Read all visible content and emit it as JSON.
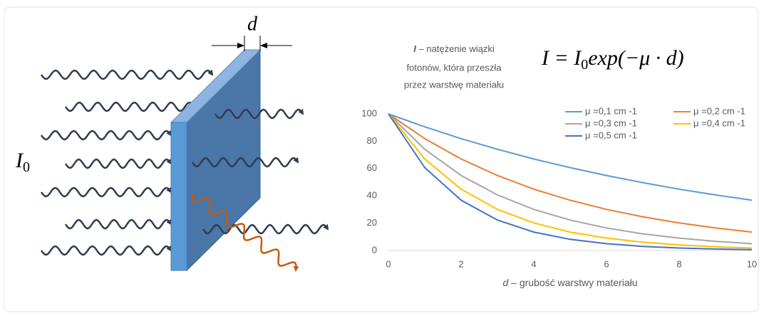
{
  "diagram": {
    "thickness_label": "d",
    "intensity_label": {
      "symbol": "I",
      "sub": "0"
    }
  },
  "chart_data": {
    "type": "line",
    "annotation": {
      "symbol": "I",
      "lines": [
        " – natężenie wiązki",
        "fotonów, która przeszła",
        "przez warstwę materiału"
      ]
    },
    "formula": {
      "lhs": "I = I",
      "sub": "0",
      "rhs": "exp(−μ · d)"
    },
    "x_label": {
      "symbol": "d",
      "text": " – grubość warstwy materiału"
    },
    "x": [
      0,
      1,
      2,
      3,
      4,
      5,
      6,
      7,
      8,
      9,
      10
    ],
    "series": [
      {
        "name": "μ =0,1 cm -1",
        "color": "#5b9bd5",
        "values": [
          100,
          90.5,
          81.9,
          74.1,
          67.0,
          60.7,
          54.9,
          49.7,
          44.9,
          40.7,
          36.8
        ]
      },
      {
        "name": "μ =0,2 cm -1",
        "color": "#ed7d31",
        "values": [
          100,
          81.9,
          67.0,
          54.9,
          44.9,
          36.8,
          30.1,
          24.7,
          20.2,
          16.5,
          13.5
        ]
      },
      {
        "name": "μ =0,3 cm -1",
        "color": "#a5a5a5",
        "values": [
          100,
          74.1,
          54.9,
          40.7,
          30.1,
          22.3,
          16.5,
          12.2,
          9.1,
          6.7,
          5.0
        ]
      },
      {
        "name": "μ =0,4 cm -1",
        "color": "#ffc000",
        "values": [
          100,
          67.0,
          44.9,
          30.1,
          20.2,
          13.5,
          9.1,
          6.1,
          4.1,
          2.7,
          1.8
        ]
      },
      {
        "name": "μ =0,5 cm -1",
        "color": "#4472c4",
        "values": [
          100,
          60.7,
          36.8,
          22.3,
          13.5,
          8.2,
          5.0,
          3.0,
          1.8,
          1.1,
          0.7
        ]
      }
    ],
    "xlim": [
      0,
      10
    ],
    "xticks": [
      0,
      2,
      4,
      6,
      8,
      10
    ],
    "ylim": [
      0,
      100
    ],
    "yticks": [
      0,
      20,
      40,
      60,
      80,
      100
    ],
    "grid": false,
    "legend": "top-right"
  }
}
